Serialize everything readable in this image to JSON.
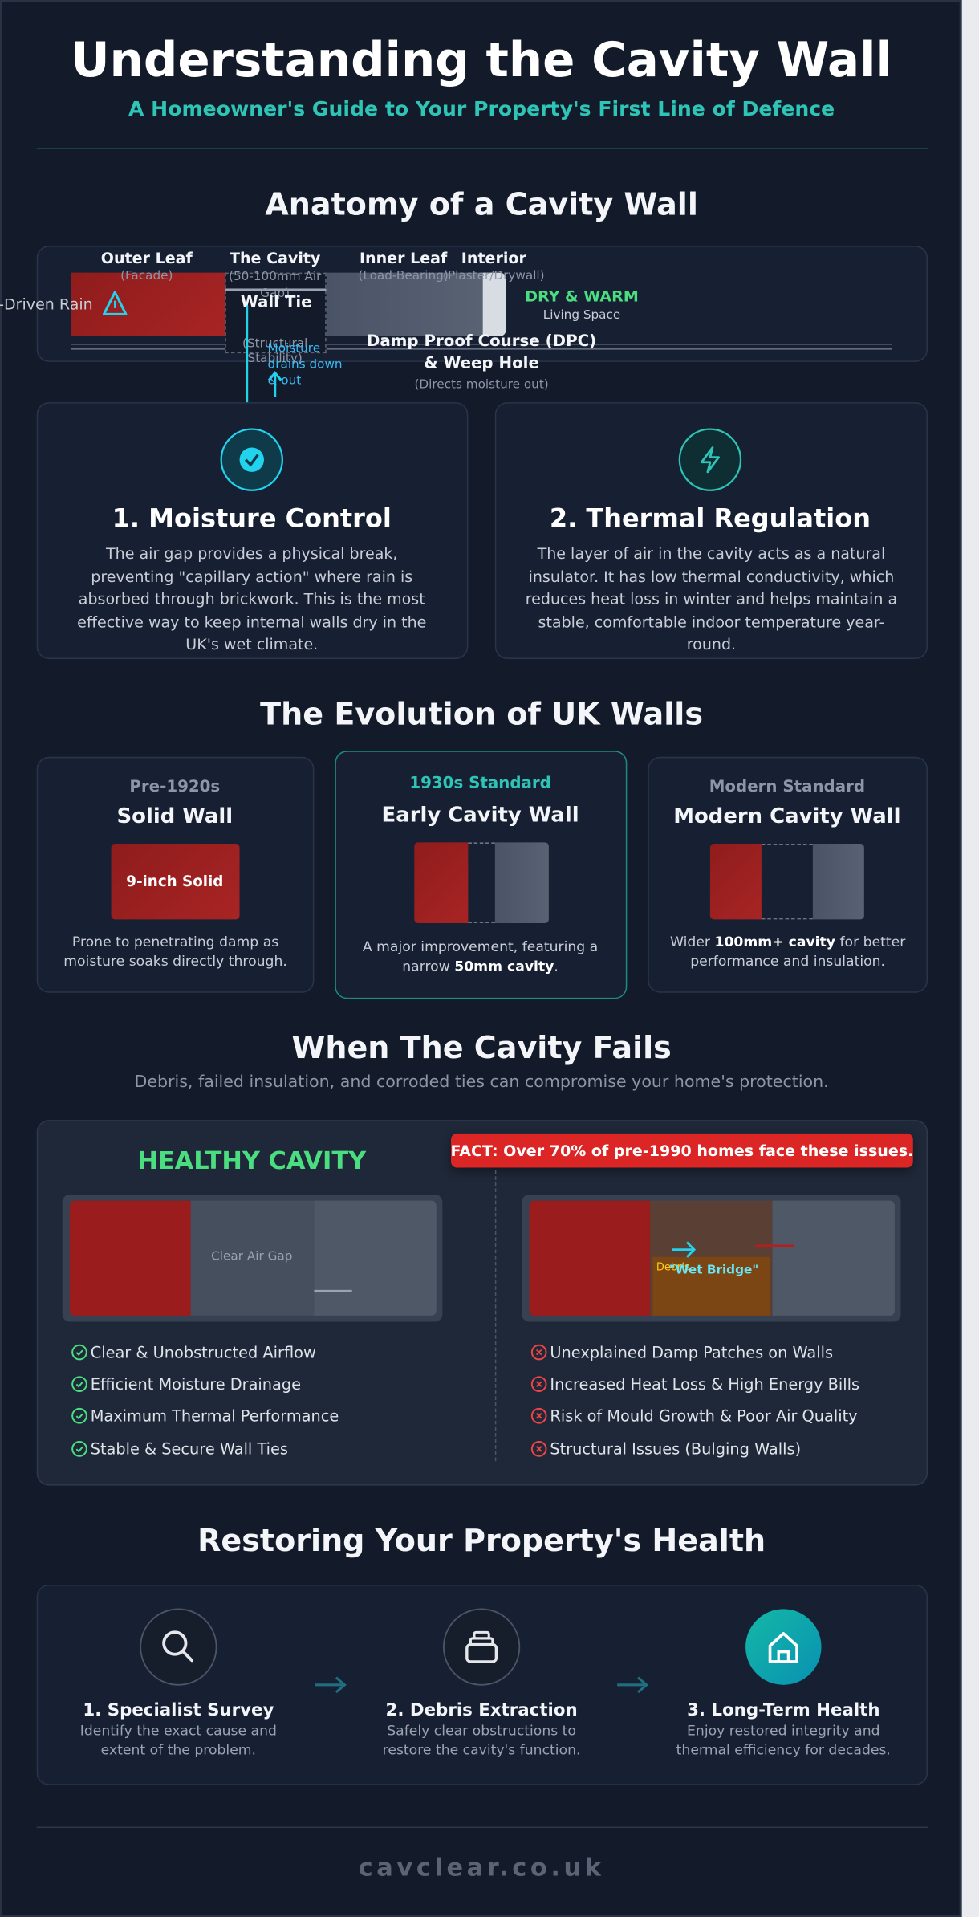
{
  "header": {
    "title": "Understanding the Cavity Wall",
    "subtitle": "A Homeowner's Guide to Your Property's First Line of Defence"
  },
  "anatomy": {
    "heading": "Anatomy of a Cavity Wall",
    "layers": [
      {
        "name": "Outer Leaf",
        "note": "(Facade)"
      },
      {
        "name": "The Cavity",
        "note": "(50-100mm Air Gap)"
      },
      {
        "name": "Inner Leaf",
        "note": "(Load-Bearing)"
      },
      {
        "name": "Interior",
        "note": "(Plaster/Drywall)"
      }
    ],
    "rain": "Wind-Driven Rain",
    "wall_tie": {
      "name": "Wall Tie",
      "note": "(Structural Stability)"
    },
    "drain": "Moisture drains down & out",
    "interior": {
      "name": "DRY & WARM",
      "note": "Living Space"
    },
    "dpc": {
      "name": "Damp Proof Course (DPC) & Weep Hole",
      "note": "(Directs moisture out)"
    }
  },
  "benefits": [
    {
      "title": "1. Moisture Control",
      "text": "The air gap provides a physical break, preventing \"capillary action\" where rain is absorbed through brickwork. This is the most effective way to keep internal walls dry in the UK's wet climate."
    },
    {
      "title": "2. Thermal Regulation",
      "text": "The layer of air in the cavity acts as a natural insulator. It has low thermal conductivity, which reduces heat loss in winter and helps maintain a stable, comfortable indoor temperature year-round."
    }
  ],
  "evolution": {
    "heading": "The Evolution of UK Walls",
    "cards": [
      {
        "era": "Pre-1920s",
        "name": "Solid Wall",
        "diagram_label": "9-inch Solid",
        "description": [
          "Prone to penetrating damp as moisture soaks directly through."
        ]
      },
      {
        "era": "1930s Standard",
        "name": "Early Cavity Wall",
        "description": [
          "A major improvement, featuring a narrow ",
          "50mm cavity",
          "."
        ]
      },
      {
        "era": "Modern Standard",
        "name": "Modern Cavity Wall",
        "description": [
          "Wider ",
          "100mm+ cavity",
          " for better performance and insulation."
        ]
      }
    ]
  },
  "fails": {
    "heading": "When The Cavity Fails",
    "subtitle": "Debris, failed insulation, and corroded ties can compromise your home's protection.",
    "healthy_title": "HEALTHY CAVITY",
    "fact": "FACT: Over 70% of pre-1990 homes face these issues.",
    "healthy_label": "Clear Air Gap",
    "debris_label": "Debris",
    "bridge_label": "\"Wet Bridge\"",
    "healthy_points": [
      "Clear & Unobstructed Airflow",
      "Efficient Moisture Drainage",
      "Maximum Thermal Performance",
      "Stable & Secure Wall Ties"
    ],
    "issues": [
      "Unexplained Damp Patches on Walls",
      "Increased Heat Loss & High Energy Bills",
      "Risk of Mould Growth & Poor Air Quality",
      "Structural Issues (Bulging Walls)"
    ]
  },
  "restore": {
    "heading": "Restoring Your Property's Health",
    "steps": [
      {
        "title": "1. Specialist Survey",
        "text": "Identify the exact cause and extent of the problem."
      },
      {
        "title": "2. Debris Extraction",
        "text": "Safely clear obstructions to restore the cavity's function."
      },
      {
        "title": "3. Long-Term Health",
        "text": "Enjoy restored integrity and thermal efficiency for decades."
      }
    ]
  },
  "footer": "cavclear.co.uk"
}
